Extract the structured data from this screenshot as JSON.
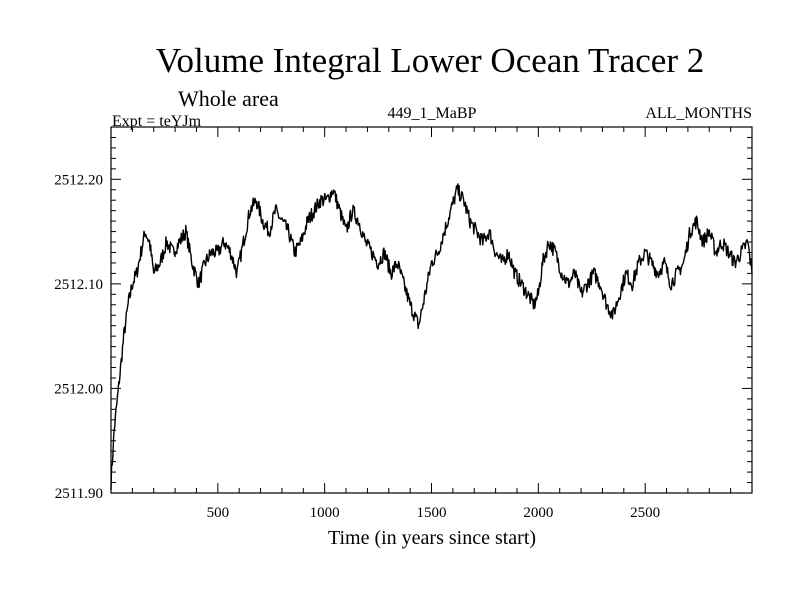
{
  "chart_data": {
    "type": "line",
    "title": "Volume Integral Lower Ocean Tracer 2",
    "subtitle": "Whole area",
    "experiment_label": "Expt = teYJm",
    "run_id": "449_1_MaBP",
    "period": "ALL_MONTHS",
    "xlabel": "Time (in years since start)",
    "ylabel": "",
    "xlim": [
      0,
      3000
    ],
    "ylim": [
      2511.9,
      2512.25
    ],
    "x_ticks": [
      500,
      1000,
      1500,
      2000,
      2500
    ],
    "x_tick_labels": [
      "500",
      "1000",
      "1500",
      "2000",
      "2500"
    ],
    "y_ticks": [
      2511.9,
      2512.0,
      2512.1,
      2512.2
    ],
    "y_tick_labels": [
      "2511.90",
      "2512.00",
      "2512.10",
      "2512.20"
    ],
    "series": [
      {
        "name": "Lower Ocean Tracer 2",
        "x": [
          0,
          15,
          30,
          45,
          60,
          80,
          100,
          120,
          140,
          160,
          180,
          200,
          230,
          260,
          290,
          320,
          350,
          380,
          410,
          440,
          470,
          500,
          530,
          560,
          590,
          620,
          650,
          680,
          710,
          740,
          770,
          800,
          830,
          860,
          890,
          920,
          950,
          980,
          1010,
          1040,
          1070,
          1100,
          1130,
          1160,
          1190,
          1220,
          1250,
          1280,
          1310,
          1340,
          1370,
          1400,
          1420,
          1440,
          1470,
          1500,
          1530,
          1560,
          1590,
          1620,
          1650,
          1680,
          1710,
          1740,
          1770,
          1800,
          1830,
          1860,
          1890,
          1920,
          1950,
          1980,
          2000,
          2020,
          2050,
          2080,
          2110,
          2140,
          2170,
          2200,
          2230,
          2260,
          2290,
          2320,
          2350,
          2380,
          2410,
          2440,
          2470,
          2500,
          2530,
          2560,
          2590,
          2620,
          2650,
          2680,
          2710,
          2740,
          2770,
          2800,
          2830,
          2860,
          2890,
          2920,
          2950,
          2980,
          3000
        ],
        "values": [
          2511.91,
          2511.96,
          2511.99,
          2512.02,
          2512.05,
          2512.08,
          2512.1,
          2512.11,
          2512.13,
          2512.15,
          2512.14,
          2512.11,
          2512.12,
          2512.14,
          2512.13,
          2512.14,
          2512.15,
          2512.12,
          2512.1,
          2512.12,
          2512.13,
          2512.13,
          2512.14,
          2512.13,
          2512.11,
          2512.14,
          2512.17,
          2512.18,
          2512.16,
          2512.15,
          2512.17,
          2512.16,
          2512.15,
          2512.13,
          2512.14,
          2512.16,
          2512.17,
          2512.18,
          2512.18,
          2512.19,
          2512.17,
          2512.15,
          2512.17,
          2512.16,
          2512.14,
          2512.13,
          2512.12,
          2512.13,
          2512.11,
          2512.12,
          2512.1,
          2512.08,
          2512.07,
          2512.06,
          2512.09,
          2512.12,
          2512.13,
          2512.15,
          2512.17,
          2512.19,
          2512.18,
          2512.16,
          2512.15,
          2512.14,
          2512.15,
          2512.13,
          2512.12,
          2512.13,
          2512.11,
          2512.1,
          2512.09,
          2512.08,
          2512.09,
          2512.12,
          2512.14,
          2512.13,
          2512.11,
          2512.1,
          2512.11,
          2512.09,
          2512.1,
          2512.11,
          2512.1,
          2512.08,
          2512.07,
          2512.09,
          2512.11,
          2512.1,
          2512.12,
          2512.13,
          2512.12,
          2512.11,
          2512.12,
          2512.1,
          2512.11,
          2512.12,
          2512.15,
          2512.16,
          2512.14,
          2512.15,
          2512.13,
          2512.14,
          2512.13,
          2512.12,
          2512.13,
          2512.14,
          2512.11
        ]
      }
    ]
  }
}
